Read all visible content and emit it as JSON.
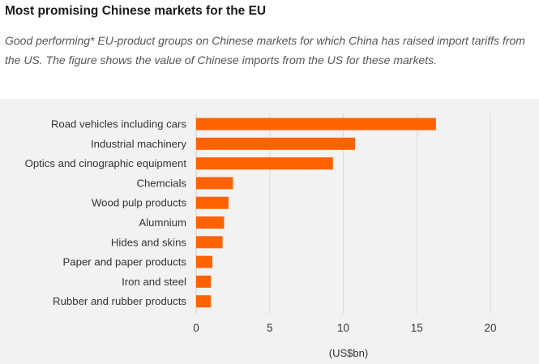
{
  "header": {
    "title": "Most promising Chinese markets for the EU",
    "subtitle": "Good performing* EU-product groups on Chinese markets for which China has raised import tariffs from the US. The figure shows the value of Chinese imports from the US for these markets."
  },
  "colors": {
    "bar": "#ff6200",
    "grid": "#d9d9d9",
    "background": "#f2f2f2"
  },
  "chart_data": {
    "type": "bar",
    "orientation": "horizontal",
    "title": "Most promising Chinese markets for the EU",
    "subtitle": "Good performing* EU-product groups on Chinese markets for which China has raised import tariffs from the US. The figure shows the value of Chinese imports from the US for these markets.",
    "categories": [
      "Road vehicles including cars",
      "Industrial machinery",
      "Optics and cinographic equipment",
      "Chemcials",
      "Wood pulp products",
      "Alumnium",
      "Hides and skins",
      "Paper and paper products",
      "Iron and steel",
      "Rubber and rubber products"
    ],
    "values": [
      16.3,
      10.8,
      9.3,
      2.5,
      2.2,
      1.9,
      1.8,
      1.1,
      1.0,
      1.0
    ],
    "xlim": [
      0,
      20
    ],
    "xticks": [
      "0",
      "5",
      "10",
      "15",
      "20"
    ],
    "xlabel": "(US$bn)",
    "ylabel": "",
    "grid": "vertical",
    "legend": "none"
  }
}
